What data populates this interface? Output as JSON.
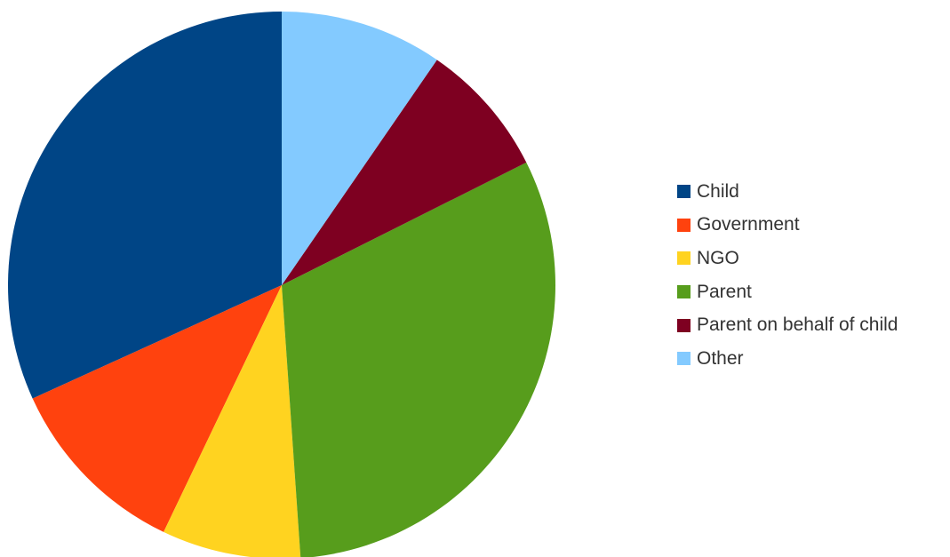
{
  "chart_data": {
    "type": "pie",
    "title": "",
    "start": "12 o'clock",
    "direction": "counterclockwise",
    "slices": [
      {
        "label": "Child",
        "value": 31.8,
        "color": "#004586"
      },
      {
        "label": "Government",
        "value": 11.1,
        "color": "#ff420e"
      },
      {
        "label": "NGO",
        "value": 8.2,
        "color": "#ffd320"
      },
      {
        "label": "Parent",
        "value": 31.3,
        "color": "#579d1c"
      },
      {
        "label": "Parent on behalf of child",
        "value": 8.0,
        "color": "#7e0021"
      },
      {
        "label": "Other",
        "value": 9.6,
        "color": "#83caff"
      }
    ],
    "legend": {
      "position": "right",
      "entries": [
        "Child",
        "Government",
        "NGO",
        "Parent",
        "Parent on behalf of child",
        "Other"
      ]
    }
  }
}
